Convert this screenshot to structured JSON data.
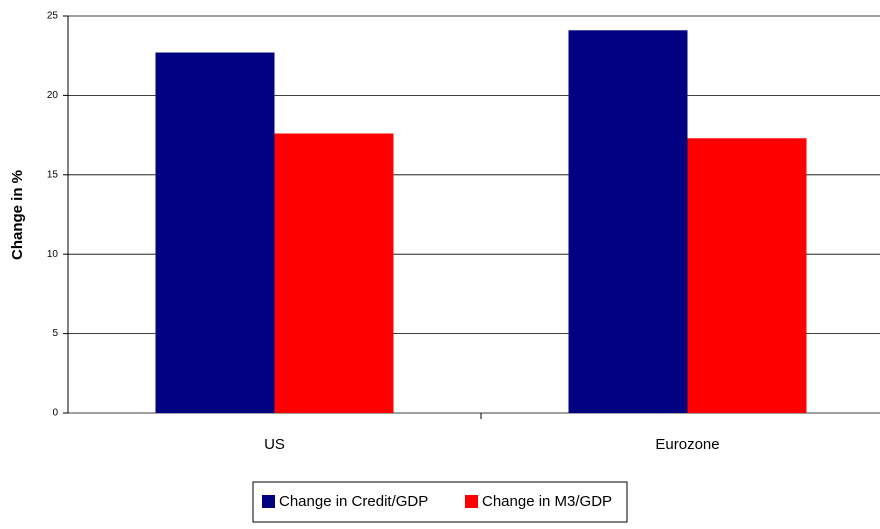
{
  "chart_data": {
    "type": "bar",
    "y_label": "Change in %",
    "categories": [
      "US",
      "Eurozone"
    ],
    "series": [
      {
        "name": "Change in Credit/GDP",
        "color": "#000080",
        "values": [
          22.7,
          24.1
        ]
      },
      {
        "name": "Change in M3/GDP",
        "color": "#ff0000",
        "values": [
          17.6,
          17.3
        ]
      }
    ],
    "ylim": [
      0,
      25
    ],
    "yticks": [
      0,
      5,
      10,
      15,
      20,
      25
    ],
    "grid": true,
    "legend": "bottom"
  }
}
